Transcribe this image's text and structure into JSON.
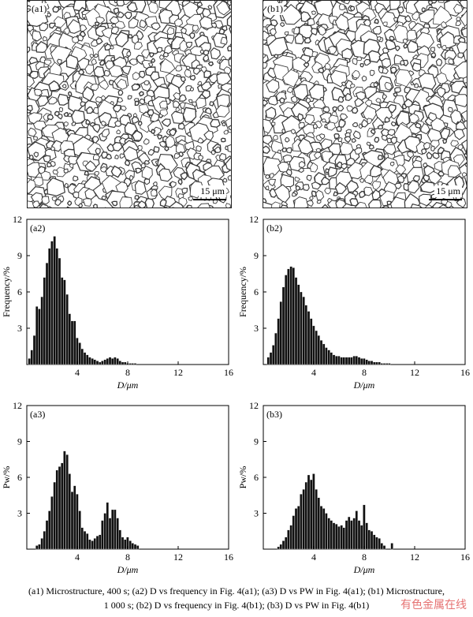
{
  "panels": {
    "a1": {
      "label": "(a1)",
      "scale": "15 μm"
    },
    "b1": {
      "label": "(b1)",
      "scale": "15 μm"
    }
  },
  "chart_data": [
    {
      "id": "a2",
      "type": "bar",
      "panel_label": "(a2)",
      "xlabel": "D/μm",
      "ylabel": "Frequency/%",
      "xlim": [
        0,
        16
      ],
      "ylim": [
        0,
        12
      ],
      "xticks": [
        0,
        4,
        8,
        12,
        16
      ],
      "xtick_labels": [
        "",
        "4",
        "8",
        "12",
        "16"
      ],
      "yticks": [
        3,
        6,
        9,
        12
      ],
      "ytick_labels": [
        "3",
        "6",
        "9",
        "12"
      ],
      "bin_width": 0.2,
      "x": [
        0.2,
        0.4,
        0.6,
        0.8,
        1.0,
        1.2,
        1.4,
        1.6,
        1.8,
        2.0,
        2.2,
        2.4,
        2.6,
        2.8,
        3.0,
        3.2,
        3.4,
        3.6,
        3.8,
        4.0,
        4.2,
        4.4,
        4.6,
        4.8,
        5.0,
        5.2,
        5.4,
        5.6,
        5.8,
        6.0,
        6.2,
        6.4,
        6.6,
        6.8,
        7.0,
        7.2,
        7.4,
        7.6,
        7.8,
        8.0,
        8.2,
        8.4,
        8.6
      ],
      "values": [
        0.5,
        1.2,
        2.4,
        4.8,
        4.6,
        5.6,
        7.2,
        8.4,
        9.6,
        10.2,
        10.6,
        9.6,
        8.8,
        7.2,
        7.0,
        5.8,
        4.2,
        3.6,
        3.6,
        2.2,
        1.8,
        1.3,
        1.0,
        0.8,
        0.6,
        0.5,
        0.4,
        0.3,
        0.2,
        0.3,
        0.4,
        0.5,
        0.6,
        0.5,
        0.6,
        0.5,
        0.3,
        0.2,
        0.2,
        0.1,
        0.1,
        0.1,
        0.1
      ]
    },
    {
      "id": "b2",
      "type": "bar",
      "panel_label": "(b2)",
      "xlabel": "D/μm",
      "ylabel": "Frequency/%",
      "xlim": [
        0,
        16
      ],
      "ylim": [
        0,
        12
      ],
      "xticks": [
        0,
        4,
        8,
        12,
        16
      ],
      "xtick_labels": [
        "",
        "4",
        "8",
        "12",
        "16"
      ],
      "yticks": [
        3,
        6,
        9,
        12
      ],
      "ytick_labels": [
        "3",
        "6",
        "9",
        "12"
      ],
      "bin_width": 0.2,
      "x": [
        0.4,
        0.6,
        0.8,
        1.0,
        1.2,
        1.4,
        1.6,
        1.8,
        2.0,
        2.2,
        2.4,
        2.6,
        2.8,
        3.0,
        3.2,
        3.4,
        3.6,
        3.8,
        4.0,
        4.2,
        4.4,
        4.6,
        4.8,
        5.0,
        5.2,
        5.4,
        5.6,
        5.8,
        6.0,
        6.2,
        6.4,
        6.6,
        6.8,
        7.0,
        7.2,
        7.4,
        7.6,
        7.8,
        8.0,
        8.2,
        8.4,
        8.6,
        8.8,
        9.0,
        9.2,
        9.4,
        9.6,
        9.8,
        10.0
      ],
      "values": [
        0.6,
        1.0,
        1.6,
        2.6,
        3.8,
        5.2,
        6.4,
        7.4,
        7.9,
        8.1,
        8.0,
        7.2,
        6.6,
        6.0,
        5.6,
        4.9,
        4.4,
        3.8,
        3.2,
        2.8,
        2.4,
        2.0,
        1.7,
        1.4,
        1.2,
        1.0,
        0.8,
        0.7,
        0.7,
        0.6,
        0.6,
        0.6,
        0.6,
        0.6,
        0.7,
        0.7,
        0.6,
        0.5,
        0.5,
        0.4,
        0.3,
        0.3,
        0.2,
        0.2,
        0.2,
        0.1,
        0.1,
        0.1,
        0.1
      ]
    },
    {
      "id": "a3",
      "type": "bar",
      "panel_label": "(a3)",
      "xlabel": "D/μm",
      "ylabel": "Pw/%",
      "xlim": [
        0,
        16
      ],
      "ylim": [
        0,
        12
      ],
      "xticks": [
        0,
        4,
        8,
        12,
        16
      ],
      "xtick_labels": [
        "",
        "4",
        "8",
        "12",
        "16"
      ],
      "yticks": [
        3,
        6,
        9,
        12
      ],
      "ytick_labels": [
        "3",
        "6",
        "9",
        "12"
      ],
      "bin_width": 0.2,
      "x": [
        0.8,
        1.0,
        1.2,
        1.4,
        1.6,
        1.8,
        2.0,
        2.2,
        2.4,
        2.6,
        2.8,
        3.0,
        3.2,
        3.4,
        3.6,
        3.8,
        4.0,
        4.2,
        4.4,
        4.6,
        4.8,
        5.0,
        5.2,
        5.4,
        5.6,
        5.8,
        6.0,
        6.2,
        6.4,
        6.6,
        6.8,
        7.0,
        7.2,
        7.4,
        7.6,
        7.8,
        8.0,
        8.2,
        8.4,
        8.6,
        8.8
      ],
      "values": [
        0.3,
        0.4,
        0.9,
        1.5,
        2.4,
        3.2,
        4.4,
        5.6,
        6.6,
        6.9,
        7.2,
        8.2,
        7.9,
        6.3,
        4.8,
        5.3,
        4.6,
        3.2,
        1.8,
        1.5,
        1.3,
        0.8,
        0.7,
        0.9,
        1.1,
        1.2,
        2.4,
        3.0,
        3.9,
        2.6,
        3.3,
        3.3,
        2.6,
        1.6,
        1.0,
        0.8,
        1.0,
        0.7,
        0.5,
        0.4,
        0.3
      ]
    },
    {
      "id": "b3",
      "type": "bar",
      "panel_label": "(b3)",
      "xlabel": "D/μm",
      "ylabel": "Pw/%",
      "xlim": [
        0,
        16
      ],
      "ylim": [
        0,
        12
      ],
      "xticks": [
        0,
        4,
        8,
        12,
        16
      ],
      "xtick_labels": [
        "",
        "4",
        "8",
        "12",
        "16"
      ],
      "yticks": [
        3,
        6,
        9,
        12
      ],
      "ytick_labels": [
        "3",
        "6",
        "9",
        "12"
      ],
      "bin_width": 0.2,
      "x": [
        1.2,
        1.4,
        1.6,
        1.8,
        2.0,
        2.2,
        2.4,
        2.6,
        2.8,
        3.0,
        3.2,
        3.4,
        3.6,
        3.8,
        4.0,
        4.2,
        4.4,
        4.6,
        4.8,
        5.0,
        5.2,
        5.4,
        5.6,
        5.8,
        6.0,
        6.2,
        6.4,
        6.6,
        6.8,
        7.0,
        7.2,
        7.4,
        7.6,
        7.8,
        8.0,
        8.2,
        8.4,
        8.6,
        8.8,
        9.0,
        9.2,
        9.4,
        9.6,
        10.2
      ],
      "values": [
        0.2,
        0.4,
        0.7,
        1.0,
        1.6,
        2.0,
        2.8,
        3.4,
        3.6,
        4.6,
        5.0,
        5.6,
        6.2,
        5.8,
        6.3,
        5.0,
        4.3,
        3.6,
        3.4,
        3.0,
        2.6,
        2.4,
        2.2,
        2.1,
        1.9,
        2.0,
        1.8,
        2.4,
        2.7,
        2.4,
        2.6,
        3.2,
        2.4,
        2.0,
        3.7,
        2.2,
        1.6,
        1.5,
        1.2,
        1.0,
        0.9,
        0.5,
        0.3,
        0.5
      ]
    }
  ],
  "caption": {
    "line1": "(a1) Microstructure, 400 s; (a2) D vs frequency in Fig. 4(a1); (a3) D vs PW in Fig. 4(a1); (b1) Microstructure,",
    "line2": "1 000 s; (b2) D vs frequency in Fig. 4(b1); (b3) D vs PW in Fig. 4(b1)"
  },
  "watermark": "有色金属在线"
}
